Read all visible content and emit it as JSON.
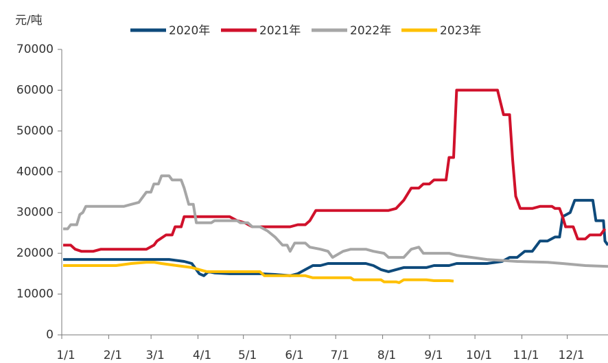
{
  "chart_data": {
    "type": "line",
    "y_label": "元/吨",
    "xlim": [
      0,
      360
    ],
    "ylim": [
      0,
      70000
    ],
    "yticks": [
      0,
      10000,
      20000,
      30000,
      40000,
      50000,
      60000,
      70000
    ],
    "xticks": [
      {
        "value": 0,
        "label": "1/1"
      },
      {
        "value": 31,
        "label": "2/1"
      },
      {
        "value": 59,
        "label": "3/1"
      },
      {
        "value": 90,
        "label": "4/1"
      },
      {
        "value": 120,
        "label": "5/1"
      },
      {
        "value": 151,
        "label": "6/1"
      },
      {
        "value": 181,
        "label": "7/1"
      },
      {
        "value": 212,
        "label": "8/1"
      },
      {
        "value": 243,
        "label": "9/1"
      },
      {
        "value": 273,
        "label": "10/1"
      },
      {
        "value": 304,
        "label": "11/1"
      },
      {
        "value": 334,
        "label": "12/1"
      }
    ],
    "legend": "top",
    "series": [
      {
        "name": "2020年",
        "color": "#0e4a7b",
        "x": [
          0,
          70,
          80,
          85,
          88,
          90,
          93,
          96,
          100,
          110,
          120,
          130,
          140,
          150,
          155,
          160,
          165,
          170,
          175,
          200,
          205,
          210,
          215,
          220,
          225,
          240,
          245,
          255,
          260,
          280,
          290,
          295,
          300,
          305,
          310,
          315,
          320,
          325,
          328,
          330,
          335,
          338,
          350,
          352,
          357,
          358,
          360
        ],
        "values": [
          18500,
          18500,
          18000,
          17500,
          16000,
          15000,
          14500,
          15500,
          15200,
          15000,
          15000,
          15000,
          14800,
          14500,
          15000,
          16000,
          17000,
          17000,
          17500,
          17500,
          17000,
          16000,
          15500,
          16000,
          16500,
          16500,
          17000,
          17000,
          17500,
          17500,
          18000,
          19000,
          19000,
          20500,
          20500,
          23000,
          23000,
          24000,
          24000,
          29000,
          30000,
          33000,
          33000,
          28000,
          28000,
          23000,
          22000
        ]
      },
      {
        "name": "2021年",
        "color": "#d0112b",
        "x": [
          0,
          5,
          8,
          12,
          20,
          25,
          55,
          60,
          62,
          68,
          72,
          74,
          78,
          80,
          110,
          115,
          120,
          125,
          150,
          155,
          160,
          163,
          167,
          215,
          220,
          225,
          230,
          235,
          238,
          242,
          245,
          253,
          255,
          258,
          260,
          287,
          289,
          291,
          295,
          297,
          299,
          302,
          310,
          315,
          323,
          325,
          328,
          330,
          332,
          337,
          340,
          345,
          348,
          355,
          358
        ],
        "values": [
          22000,
          22000,
          21000,
          20500,
          20500,
          21000,
          21000,
          22000,
          23000,
          24500,
          24500,
          26500,
          26500,
          29000,
          29000,
          28000,
          27500,
          26500,
          26500,
          27000,
          27000,
          28000,
          30500,
          30500,
          31000,
          33000,
          36000,
          36000,
          37000,
          37000,
          38000,
          38000,
          43500,
          43500,
          60000,
          60000,
          57000,
          54000,
          54000,
          43000,
          34000,
          31000,
          31000,
          31500,
          31500,
          31000,
          31000,
          29000,
          26500,
          26500,
          23500,
          23500,
          24500,
          24500,
          26000
        ]
      },
      {
        "name": "2022年",
        "color": "#a6a6a6",
        "x": [
          0,
          3,
          5,
          9,
          11,
          13,
          15,
          40,
          45,
          50,
          55,
          58,
          60,
          63,
          65,
          70,
          72,
          78,
          80,
          83,
          86,
          88,
          98,
          100,
          115,
          117,
          122,
          125,
          130,
          135,
          140,
          145,
          148,
          150,
          153,
          160,
          163,
          170,
          175,
          178,
          185,
          190,
          200,
          205,
          212,
          215,
          225,
          230,
          235,
          238,
          255,
          260,
          270,
          280,
          300,
          320,
          330,
          345,
          360
        ],
        "values": [
          26000,
          26000,
          27000,
          27000,
          29500,
          30000,
          31500,
          31500,
          32000,
          32500,
          35000,
          35000,
          37000,
          37000,
          39000,
          39000,
          38000,
          38000,
          36000,
          32000,
          32000,
          27500,
          27500,
          28000,
          28000,
          27500,
          27500,
          26500,
          26500,
          25500,
          24000,
          22000,
          22000,
          20500,
          22500,
          22500,
          21500,
          21000,
          20500,
          19000,
          20500,
          21000,
          21000,
          20500,
          20000,
          19000,
          19000,
          21000,
          21500,
          20000,
          20000,
          19500,
          19000,
          18500,
          18000,
          17800,
          17500,
          17000,
          16800
        ]
      },
      {
        "name": "2023年",
        "color": "#ffc000",
        "x": [
          0,
          35,
          45,
          55,
          60,
          65,
          75,
          85,
          90,
          95,
          130,
          133,
          140,
          160,
          165,
          190,
          192,
          210,
          212,
          220,
          222,
          225,
          240,
          245,
          255,
          258
        ],
        "values": [
          17000,
          17000,
          17500,
          17800,
          17800,
          17500,
          17000,
          16500,
          16000,
          15500,
          15500,
          14500,
          14500,
          14500,
          14000,
          14000,
          13500,
          13500,
          13000,
          13000,
          12800,
          13500,
          13500,
          13300,
          13300,
          13200
        ]
      }
    ]
  }
}
